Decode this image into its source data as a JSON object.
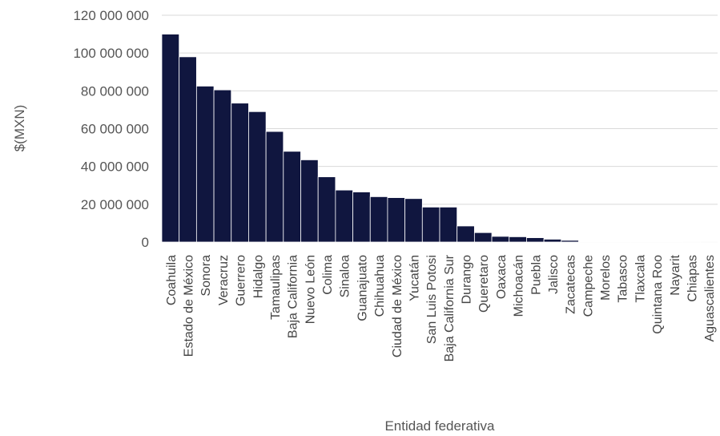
{
  "chart_data": {
    "type": "bar",
    "title": "",
    "xlabel": "Entidad federativa",
    "ylabel": "$(MXN)",
    "ylim": [
      0,
      120000000
    ],
    "yticks": [
      0,
      20000000,
      40000000,
      60000000,
      80000000,
      100000000,
      120000000
    ],
    "ytick_labels": [
      "0",
      "20 000 000",
      "40 000 000",
      "60 000 000",
      "80 000 000",
      "100 000 000",
      "120 000 000"
    ],
    "grid": true,
    "legend": "none",
    "bar_color": "#10163f",
    "bar_edge_color": "#ffffff",
    "grid_color": "#d9d9d9",
    "categories": [
      "Coahuila",
      "Estado de México",
      "Sonora",
      "Veracruz",
      "Guerrero",
      "Hidalgo",
      "Tamaulipas",
      "Baja California",
      "Nuevo León",
      "Colima",
      "Sinaloa",
      "Guanajuato",
      "Chihuahua",
      "Ciudad de México",
      "Yucatán",
      "San Luis Potosi",
      "Baja California Sur",
      "Durango",
      "Queretaro",
      "Oaxaca",
      "Michoacán",
      "Puebla",
      "Jalisco",
      "Zacatecas",
      "Campeche",
      "Morelos",
      "Tabasco",
      "Tlaxcala",
      "Quintana Roo",
      "Nayarit",
      "Chiapas",
      "Aguascalientes"
    ],
    "values": [
      110000000,
      98000000,
      82500000,
      80500000,
      73500000,
      69000000,
      58500000,
      48000000,
      43500000,
      34500000,
      27500000,
      26500000,
      24000000,
      23500000,
      23000000,
      18500000,
      18500000,
      8500000,
      5000000,
      3000000,
      2800000,
      2300000,
      1500000,
      900000,
      200000,
      150000,
      100000,
      80000,
      60000,
      40000,
      30000,
      20000
    ]
  }
}
